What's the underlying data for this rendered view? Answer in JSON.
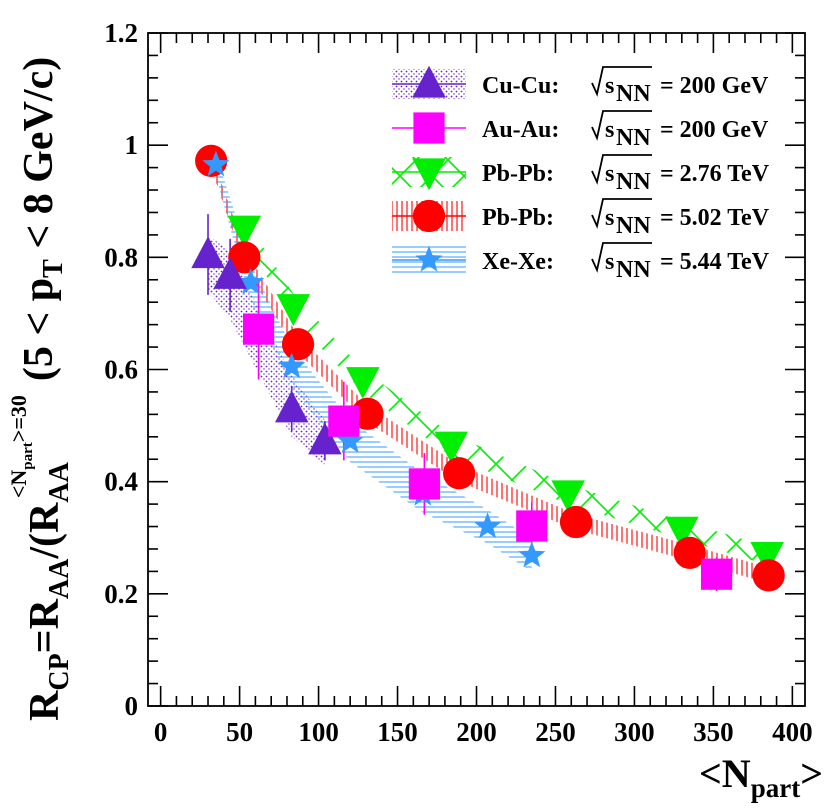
{
  "chart_data": {
    "type": "scatter",
    "xlabel": "<N_part>",
    "xlabel_parts": {
      "open": "<N",
      "sub": "part",
      "close": ">"
    },
    "ylabel": "R_CP=R_AA/(R_AA^{<N_part>=30} (5 < p_T < 8 GeV/c)",
    "ylabel_parts": {
      "r": "R",
      "cp": "CP",
      "eq": "=R",
      "aa": "AA",
      "mid": "/(R",
      "aa2": "AA",
      "sup_open": "<N",
      "sup_sub": "part",
      "sup_close": ">=30",
      "paren": "(5 < p",
      "t": "T",
      "tail": " < 8 GeV/c)"
    },
    "xlim": [
      -8,
      408
    ],
    "ylim": [
      0,
      1.2
    ],
    "xticks": [
      0,
      50,
      100,
      150,
      200,
      250,
      300,
      350,
      400
    ],
    "yticks": [
      0,
      0.2,
      0.4,
      0.6,
      0.8,
      1,
      1.2
    ],
    "ytick_labels": [
      "0",
      "0.2",
      "0.4",
      "0.6",
      "0.8",
      "1",
      "1.2"
    ],
    "legend_position": "top-right",
    "series": [
      {
        "name": "Cu-Cu",
        "energy_label": "= 200 GeV",
        "color": "#6622cc",
        "marker": "triangle-up",
        "band_style": "dots",
        "x": [
          30,
          44,
          83,
          104
        ],
        "y": [
          0.805,
          0.768,
          0.53,
          0.473
        ],
        "yerr": [
          0.072,
          0.065,
          0.04,
          0.035
        ],
        "band_upper": [
          0.84,
          0.81,
          0.59,
          0.51
        ],
        "band_lower": [
          0.74,
          0.69,
          0.48,
          0.43
        ]
      },
      {
        "name": "Au-Au",
        "energy_label": "= 200 GeV",
        "color": "#ff00ff",
        "marker": "square",
        "band_style": "none",
        "x": [
          62,
          116,
          167,
          235,
          352
        ],
        "y": [
          0.672,
          0.508,
          0.396,
          0.321,
          0.235
        ],
        "yerr": [
          0.09,
          0.07,
          0.055,
          0.042,
          0.03
        ]
      },
      {
        "name": "Pb-Pb",
        "energy_label": "= 2.76 TeV",
        "color": "#00ee00",
        "marker": "triangle-down",
        "band_style": "crosshatch",
        "x": [
          53,
          84,
          128,
          184,
          258,
          330,
          384
        ],
        "y": [
          0.85,
          0.71,
          0.58,
          0.465,
          0.378,
          0.313,
          0.268
        ],
        "band_upper": [
          0.87,
          0.735,
          0.6,
          0.485,
          0.395,
          0.33,
          0.285
        ],
        "band_lower": [
          0.83,
          0.69,
          0.56,
          0.445,
          0.36,
          0.298,
          0.252
        ]
      },
      {
        "name": "Pb-Pb",
        "energy_label": "= 5.02 TeV",
        "color": "#ff0000",
        "marker": "circle",
        "band_style": "vlines",
        "x": [
          32,
          53,
          87,
          131,
          189,
          263,
          335,
          385
        ],
        "y": [
          0.972,
          0.8,
          0.645,
          0.521,
          0.415,
          0.328,
          0.273,
          0.233
        ],
        "band_upper": [
          0.985,
          0.815,
          0.66,
          0.536,
          0.43,
          0.342,
          0.287,
          0.247
        ],
        "band_lower": [
          0.96,
          0.785,
          0.63,
          0.506,
          0.4,
          0.314,
          0.259,
          0.219
        ]
      },
      {
        "name": "Xe-Xe",
        "energy_label": "= 5.44 TeV",
        "color": "#3399ff",
        "marker": "star",
        "band_style": "hlines",
        "x": [
          35,
          57,
          83,
          120,
          166,
          207,
          235
        ],
        "y": [
          0.965,
          0.755,
          0.605,
          0.472,
          0.378,
          0.32,
          0.268
        ],
        "band_upper": [
          0.985,
          0.79,
          0.64,
          0.51,
          0.415,
          0.35,
          0.298
        ],
        "band_lower": [
          0.945,
          0.72,
          0.57,
          0.435,
          0.345,
          0.29,
          0.24
        ]
      }
    ]
  },
  "legend": {
    "sqrt_label": "s",
    "sqrt_sub": "NN"
  }
}
